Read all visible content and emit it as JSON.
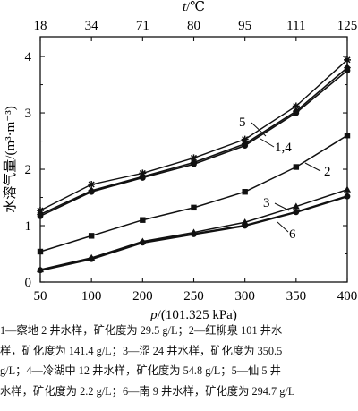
{
  "chart_data": {
    "type": "line",
    "x_bottom": {
      "ticks": [
        50,
        100,
        200,
        250,
        300,
        350,
        400
      ],
      "label_prefix": "p",
      "label_suffix": "/(101.325 kPa)"
    },
    "x_top": {
      "ticks": [
        "18",
        "34",
        "71",
        "80",
        "95",
        "111",
        "125"
      ],
      "label_prefix": "t",
      "label_suffix": "/℃"
    },
    "y": {
      "ticks": [
        0,
        1,
        2,
        3,
        4
      ],
      "ylim": [
        0,
        4.35
      ],
      "label": "水溶气量/(m³·m⁻³)"
    },
    "series": [
      {
        "name": "1",
        "values": [
          1.17,
          1.6,
          1.85,
          2.09,
          2.42,
          3.0,
          3.75
        ]
      },
      {
        "name": "2",
        "values": [
          0.54,
          0.82,
          1.1,
          1.32,
          1.6,
          2.04,
          2.6
        ]
      },
      {
        "name": "3",
        "values": [
          0.22,
          0.43,
          0.72,
          0.88,
          1.06,
          1.34,
          1.64
        ]
      },
      {
        "name": "4",
        "values": [
          1.2,
          1.62,
          1.87,
          2.12,
          2.45,
          3.03,
          3.8
        ]
      },
      {
        "name": "5",
        "values": [
          1.27,
          1.73,
          1.93,
          2.2,
          2.53,
          3.12,
          3.94
        ]
      },
      {
        "name": "6",
        "values": [
          0.21,
          0.41,
          0.7,
          0.85,
          1.0,
          1.24,
          1.52
        ]
      }
    ],
    "curve_labels": [
      "5",
      "1,4",
      "2",
      "3",
      "6"
    ],
    "grid": false
  },
  "caption_lines": [
    "1—察地 2 井水样，矿化度为 29.5 g/L；2—红柳泉 101 井水",
    "样，矿化度为 141.4 g/L；3—涩 24 井水样，矿化度为 350.5",
    "g/L；4—冷湖中 12 井水样，矿化度为 54.8 g/L；5—仙 5 井",
    "水样，矿化度为 2.2 g/L；6—南 9 井水样，矿化度为 294.7 g/L"
  ]
}
